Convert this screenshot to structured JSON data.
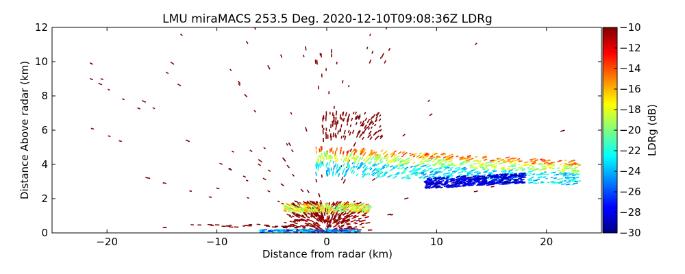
{
  "chart_data": {
    "type": "scatter",
    "title": "LMU miraMACS 253.5 Deg. 2020-12-10T09:08:36Z  LDRg",
    "xlabel": "Distance from radar (km)",
    "ylabel": "Distance Above radar  (km)",
    "xlim": [
      -25,
      25
    ],
    "ylim": [
      0,
      12
    ],
    "xticks": [
      -20,
      -10,
      0,
      10,
      20
    ],
    "xtick_labels": [
      "−20",
      "−10",
      "0",
      "10",
      "20"
    ],
    "yticks": [
      0,
      2,
      4,
      6,
      8,
      10,
      12
    ],
    "ytick_labels": [
      "0",
      "2",
      "4",
      "6",
      "8",
      "10",
      "12"
    ],
    "grid": false,
    "colorbar": {
      "label": "LDRg (dB)",
      "min": -30,
      "max": -10,
      "colormap": "jet",
      "ticks": [
        -10,
        -12,
        -14,
        -16,
        -18,
        -20,
        -22,
        -24,
        -26,
        -28,
        -30
      ],
      "tick_labels": [
        "−10",
        "−12",
        "−14",
        "−16",
        "−18",
        "−20",
        "−22",
        "−24",
        "−26",
        "−28",
        "−30"
      ]
    },
    "regions": [
      {
        "name": "scattered high-LDR clutter",
        "x": [
          -23,
          23
        ],
        "y": [
          0.3,
          12
        ],
        "ldr": -10
      },
      {
        "name": "low-level cluster near radar",
        "x": [
          -4,
          4
        ],
        "y": [
          0,
          1.8
        ],
        "ldr": -11
      },
      {
        "name": "layer near 1.5 km",
        "x": [
          -4,
          4
        ],
        "y": [
          1.2,
          1.7
        ],
        "ldr": -18
      },
      {
        "name": "tilted layer at 2.5-5 km",
        "x": [
          -1,
          23
        ],
        "y": [
          2.3,
          5
        ],
        "ldr": -19
      },
      {
        "name": "low-LDR band",
        "x": [
          9,
          18
        ],
        "y": [
          2.5,
          3.4
        ],
        "ldr": -27
      },
      {
        "name": "near-ground band",
        "x": [
          -6,
          3
        ],
        "y": [
          0,
          0.2
        ],
        "ldr": -22
      },
      {
        "name": "column above radar",
        "x": [
          -0.5,
          5
        ],
        "y": [
          5.5,
          7
        ],
        "ldr": -10
      }
    ]
  }
}
